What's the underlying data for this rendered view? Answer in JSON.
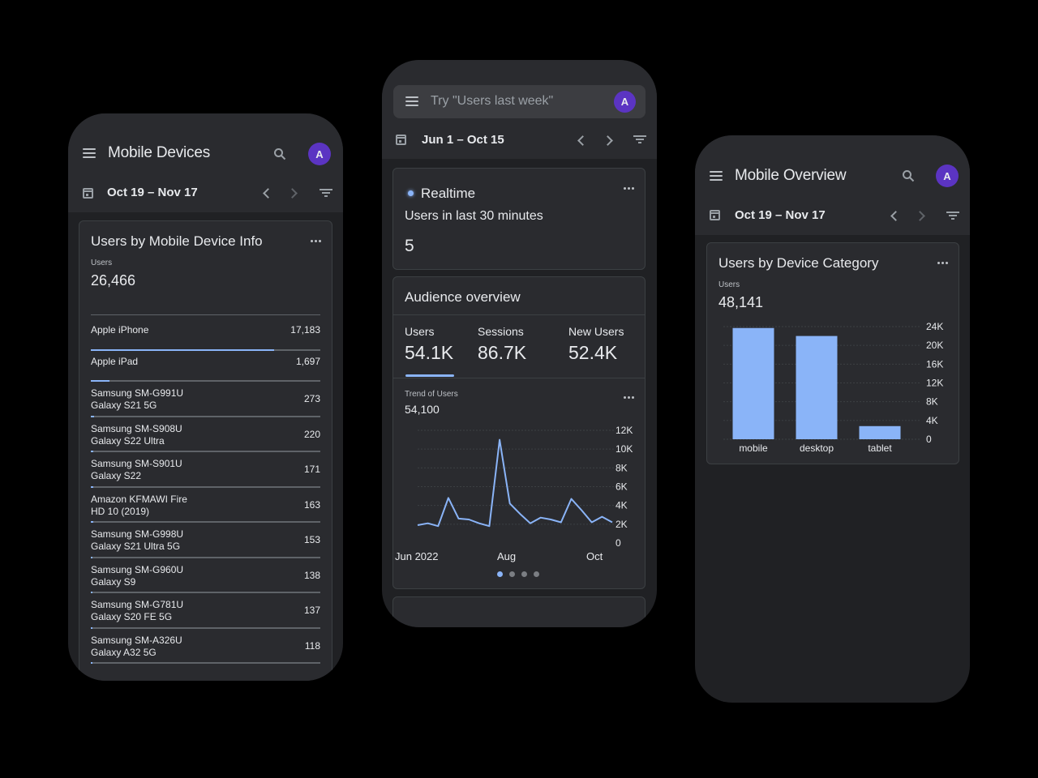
{
  "phones": [
    {
      "id": "mobile-devices",
      "app_title": "Mobile Devices",
      "avatar_letter": "A",
      "date_range": "Oct 19 – Nov 17",
      "card": {
        "title": "Users by Mobile Device Info",
        "metric_label": "Users",
        "metric_value": "26,466",
        "rows": [
          {
            "name_line1": "Apple iPhone",
            "name_line2": "",
            "value": "17,183",
            "fill_pct": 80
          },
          {
            "name_line1": "Apple iPad",
            "name_line2": "",
            "value": "1,697",
            "fill_pct": 8
          },
          {
            "name_line1": "Samsung SM-G991U",
            "name_line2": "Galaxy S21 5G",
            "value": "273",
            "fill_pct": 1.3
          },
          {
            "name_line1": "Samsung SM-S908U",
            "name_line2": "Galaxy S22 Ultra",
            "value": "220",
            "fill_pct": 1.1
          },
          {
            "name_line1": "Samsung SM-S901U",
            "name_line2": "Galaxy S22",
            "value": "171",
            "fill_pct": 0.9
          },
          {
            "name_line1": "Amazon KFMAWI Fire",
            "name_line2": "HD 10 (2019)",
            "value": "163",
            "fill_pct": 0.9
          },
          {
            "name_line1": "Samsung SM-G998U",
            "name_line2": "Galaxy S21 Ultra 5G",
            "value": "153",
            "fill_pct": 0.8
          },
          {
            "name_line1": "Samsung SM-G960U",
            "name_line2": "Galaxy S9",
            "value": "138",
            "fill_pct": 0.7
          },
          {
            "name_line1": "Samsung SM-G781U",
            "name_line2": "Galaxy S20 FE 5G",
            "value": "137",
            "fill_pct": 0.7
          },
          {
            "name_line1": "Samsung SM-A326U",
            "name_line2": "Galaxy A32 5G",
            "value": "118",
            "fill_pct": 0.6
          }
        ]
      }
    },
    {
      "id": "home",
      "search_placeholder": "Try \"Users last week\"",
      "avatar_letter": "A",
      "date_range": "Jun 1 – Oct 15",
      "realtime": {
        "title": "Realtime",
        "subtitle": "Users in last 30 minutes",
        "value": "5"
      },
      "audience": {
        "title": "Audience overview",
        "metrics": [
          {
            "label": "Users",
            "value": "54.1K",
            "selected": true
          },
          {
            "label": "Sessions",
            "value": "86.7K",
            "selected": false
          },
          {
            "label": "New Users",
            "value": "52.4K",
            "selected": false
          }
        ],
        "trend_label": "Trend of Users",
        "trend_value": "54,100",
        "pager": {
          "count": 4,
          "active": 0
        }
      }
    },
    {
      "id": "mobile-overview",
      "app_title": "Mobile Overview",
      "avatar_letter": "A",
      "date_range": "Oct 19 – Nov 17",
      "card": {
        "title": "Users by Device Category",
        "metric_label": "Users",
        "metric_value": "48,141"
      }
    }
  ],
  "colors": {
    "accent_blue": "#8ab4f8",
    "avatar_purple": "#5b34c2",
    "surface": "#2a2b2f",
    "background": "#202124"
  },
  "chart_data": [
    {
      "type": "line",
      "title": "Trend of Users",
      "subtitle": "54,100",
      "x_tick_labels": [
        "Jun 2022",
        "Aug",
        "Oct"
      ],
      "y_tick_labels": [
        "0",
        "2K",
        "4K",
        "6K",
        "8K",
        "10K",
        "12K"
      ],
      "ylim": [
        0,
        12000
      ],
      "grid": true,
      "series": [
        {
          "name": "Users",
          "color": "#8ab4f8",
          "values": [
            1900,
            2100,
            1800,
            4800,
            2600,
            2500,
            2100,
            1800,
            11000,
            4200,
            3100,
            2100,
            2700,
            2500,
            2200,
            4700,
            3500,
            2200,
            2800,
            2200
          ]
        }
      ]
    },
    {
      "type": "bar",
      "title": "Users by Device Category",
      "subtitle": "48,141",
      "categories": [
        "mobile",
        "desktop",
        "tablet"
      ],
      "values": [
        23700,
        22000,
        2800
      ],
      "y_tick_labels": [
        "0",
        "4K",
        "8K",
        "12K",
        "16K",
        "20K",
        "24K"
      ],
      "ylim": [
        0,
        24000
      ],
      "grid": true,
      "color": "#8ab4f8"
    }
  ]
}
